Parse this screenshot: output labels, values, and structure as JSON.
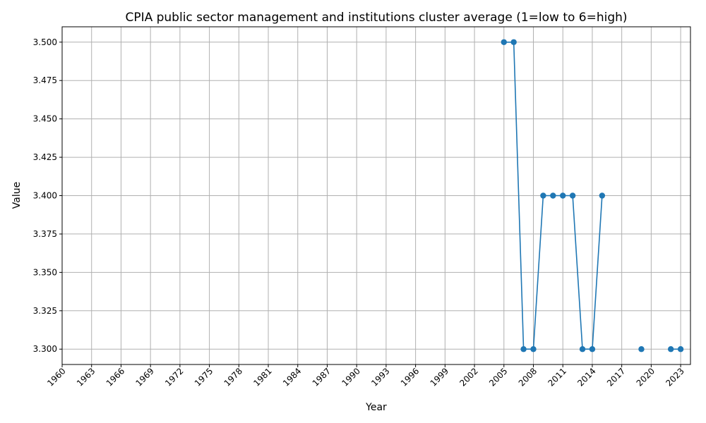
{
  "chart_data": {
    "type": "line",
    "title": "CPIA public sector management and institutions cluster average (1=low to 6=high)",
    "xlabel": "Year",
    "ylabel": "Value",
    "xlim": [
      1960,
      2024
    ],
    "ylim": [
      3.29,
      3.51
    ],
    "grid": true,
    "x_ticks": [
      "1960",
      "1963",
      "1966",
      "1969",
      "1972",
      "1975",
      "1978",
      "1981",
      "1984",
      "1987",
      "1990",
      "1993",
      "1996",
      "1999",
      "2002",
      "2005",
      "2008",
      "2011",
      "2014",
      "2017",
      "2020",
      "2023"
    ],
    "y_ticks": [
      "3.300",
      "3.325",
      "3.350",
      "3.375",
      "3.400",
      "3.425",
      "3.450",
      "3.475",
      "3.500"
    ],
    "series": [
      {
        "color": "#1f77b4",
        "x": [
          2005,
          2006,
          2007,
          2008,
          2009,
          2010,
          2011,
          2012,
          2013,
          2014,
          2015,
          2019,
          2022,
          2023
        ],
        "y": [
          3.5,
          3.5,
          3.3,
          3.3,
          3.4,
          3.4,
          3.4,
          3.4,
          3.3,
          3.3,
          3.4,
          3.3,
          3.3,
          3.3
        ],
        "segments": [
          [
            0,
            10
          ],
          [
            12,
            13
          ]
        ]
      }
    ]
  }
}
